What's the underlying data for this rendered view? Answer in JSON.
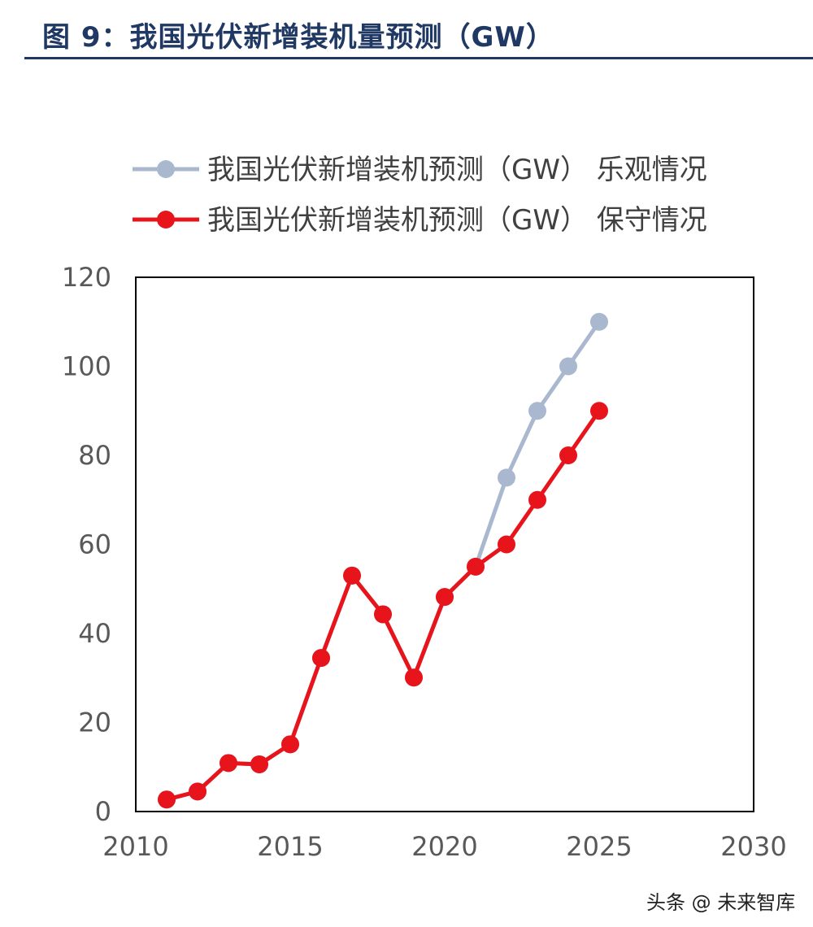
{
  "figure_title": "图 9：我国光伏新增装机量预测（GW）",
  "watermark": "头条 @ 未来智库",
  "chart_data": {
    "type": "line",
    "xlim": [
      2010,
      2030
    ],
    "ylim": [
      0,
      120
    ],
    "xticks": [
      2010,
      2015,
      2020,
      2025,
      2030
    ],
    "yticks": [
      0,
      20,
      40,
      60,
      80,
      100,
      120
    ],
    "grid": false,
    "legend_position": "top",
    "series": [
      {
        "name": "我国光伏新增装机预测（GW） 乐观情况",
        "color": "#a9b8cf",
        "x": [
          2011,
          2012,
          2013,
          2014,
          2015,
          2016,
          2017,
          2018,
          2019,
          2020,
          2021,
          2022,
          2023,
          2024,
          2025
        ],
        "values": [
          2.7,
          4.5,
          10.9,
          10.6,
          15.1,
          34.5,
          53,
          44.3,
          30.1,
          48.2,
          55,
          75,
          90,
          100,
          110
        ]
      },
      {
        "name": "我国光伏新增装机预测（GW） 保守情况",
        "color": "#e8141c",
        "x": [
          2011,
          2012,
          2013,
          2014,
          2015,
          2016,
          2017,
          2018,
          2019,
          2020,
          2021,
          2022,
          2023,
          2024,
          2025
        ],
        "values": [
          2.7,
          4.5,
          10.9,
          10.6,
          15.1,
          34.5,
          53,
          44.3,
          30.1,
          48.2,
          55,
          60,
          70,
          80,
          90
        ]
      }
    ]
  }
}
